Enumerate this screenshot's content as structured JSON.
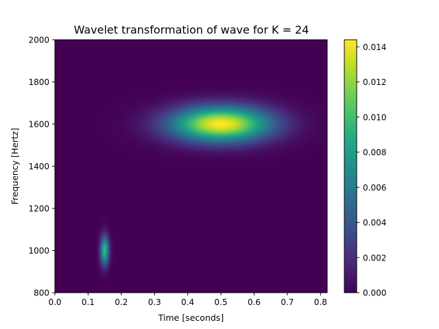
{
  "chart_data": {
    "type": "heatmap",
    "title": "Wavelet transformation of wave for K = 24",
    "xlabel": "Time [seconds]",
    "ylabel": "Frequency [Hertz]",
    "xlim": [
      0.0,
      0.82
    ],
    "ylim": [
      800,
      2000
    ],
    "x_ticks": [
      "0.0",
      "0.1",
      "0.2",
      "0.3",
      "0.4",
      "0.5",
      "0.6",
      "0.7",
      "0.8"
    ],
    "y_ticks": [
      "800",
      "1000",
      "1200",
      "1400",
      "1600",
      "1800",
      "2000"
    ],
    "colormap": "viridis",
    "colorbar": {
      "range": [
        0.0,
        0.0144
      ],
      "ticks": [
        "0.000",
        "0.002",
        "0.004",
        "0.006",
        "0.008",
        "0.010",
        "0.012",
        "0.014"
      ]
    },
    "features": [
      {
        "center_time": 0.5,
        "center_frequency": 1600,
        "time_spread": 0.105,
        "frequency_spread": 58,
        "peak_value": 0.0144
      },
      {
        "center_time": 0.15,
        "center_frequency": 1000,
        "time_spread": 0.009,
        "frequency_spread": 48,
        "peak_value": 0.0097
      }
    ],
    "grid": false,
    "legend": "none"
  }
}
